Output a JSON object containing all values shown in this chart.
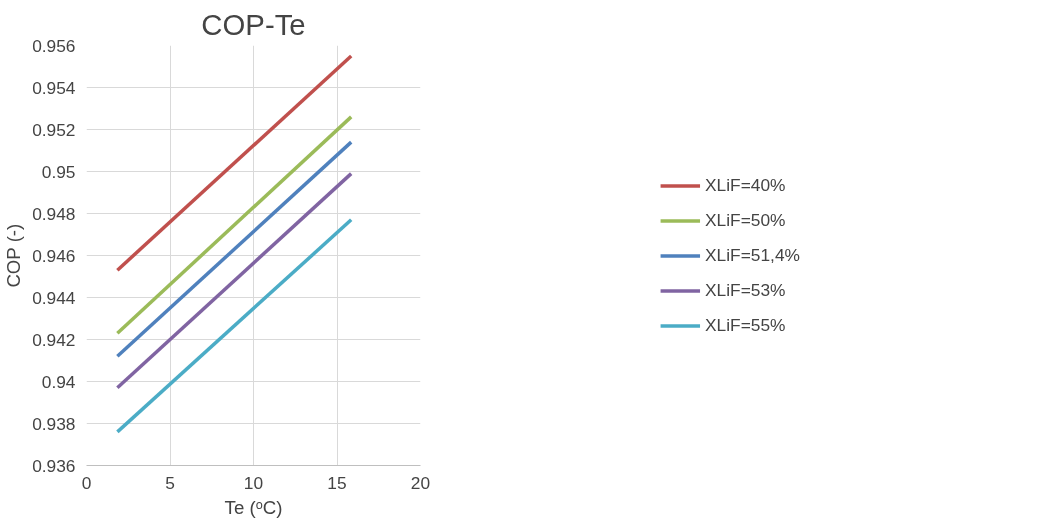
{
  "chart_data": {
    "type": "line",
    "title": "COP-Te",
    "xlabel": "Te (ᵒC)",
    "ylabel": "COP (-)",
    "xlim": [
      0,
      20
    ],
    "xticks": [
      0,
      5,
      10,
      15,
      20
    ],
    "ylim": [
      0.936,
      0.956
    ],
    "yticks": [
      0.936,
      0.938,
      0.94,
      0.942,
      0.944,
      0.946,
      0.948,
      0.95,
      0.952,
      0.954,
      0.956
    ],
    "grid": true,
    "legend": "right",
    "marker": "none",
    "line_style": "solid",
    "x": [
      1.85,
      15.85
    ],
    "series": [
      {
        "name": "XLiF=40%",
        "color": "#c0504d",
        "values": [
          0.9453,
          0.9555
        ]
      },
      {
        "name": "XLiF=50%",
        "color": "#9bbb59",
        "values": [
          0.9423,
          0.9526
        ]
      },
      {
        "name": "XLiF=51,4%",
        "color": "#4f81bd",
        "values": [
          0.9412,
          0.9514
        ]
      },
      {
        "name": "XLiF=53%",
        "color": "#8064a2",
        "values": [
          0.9397,
          0.9499
        ]
      },
      {
        "name": "XLiF=55%",
        "color": "#4bacc6",
        "values": [
          0.9376,
          0.9477
        ]
      }
    ]
  }
}
